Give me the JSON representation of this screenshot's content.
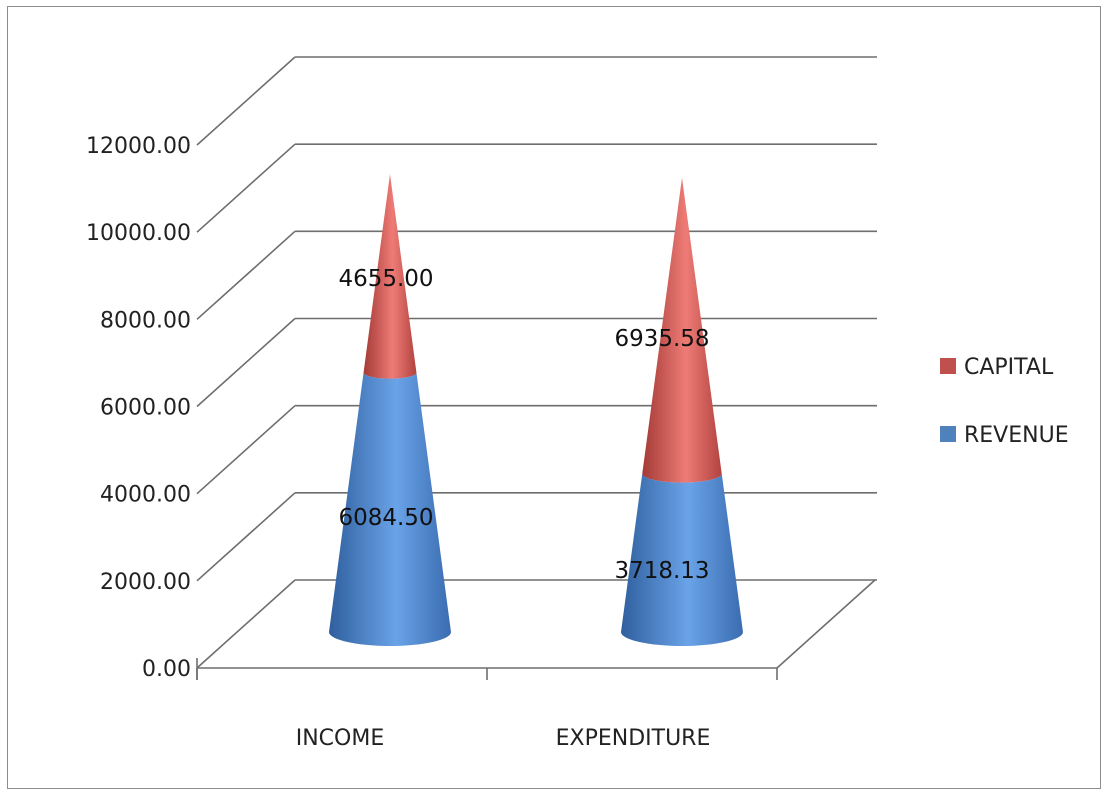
{
  "chart_data": {
    "type": "bar",
    "stacked": true,
    "shape": "cone-3d",
    "categories": [
      "INCOME",
      "EXPENDITURE"
    ],
    "series": [
      {
        "name": "REVENUE",
        "values": [
          6084.5,
          3718.13
        ],
        "color": "#4f81bd"
      },
      {
        "name": "CAPITAL",
        "values": [
          4655.0,
          6935.58
        ],
        "color": "#c0504d"
      }
    ],
    "data_labels": {
      "REVENUE": [
        "6084.50",
        "3718.13"
      ],
      "CAPITAL": [
        "4655.00",
        "6935.58"
      ]
    },
    "y_ticks": [
      "0.00",
      "2000.00",
      "4000.00",
      "6000.00",
      "8000.00",
      "10000.00",
      "12000.00"
    ],
    "ylim": [
      0,
      12000
    ],
    "grid": true,
    "legend_position": "right",
    "legend_order": [
      "CAPITAL",
      "REVENUE"
    ]
  }
}
